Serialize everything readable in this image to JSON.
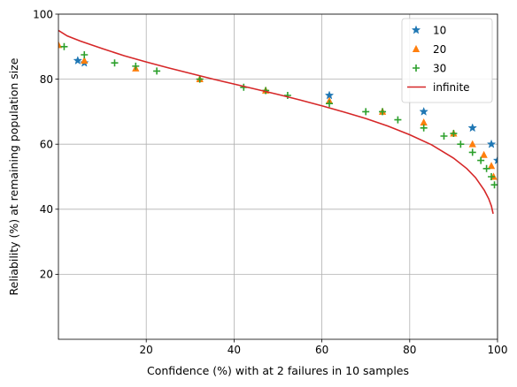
{
  "chart_data": {
    "type": "scatter",
    "xlabel": "Confidence (%) with at 2 failures in 10 samples",
    "ylabel": "Reliability (%) at remaining population size",
    "xlim": [
      0,
      100
    ],
    "ylim": [
      0,
      100
    ],
    "x_ticks": [
      "20",
      "40",
      "60",
      "80",
      "100"
    ],
    "y_ticks": [
      "20",
      "40",
      "60",
      "80",
      "100"
    ],
    "grid": true,
    "legend_position": "top-right",
    "series": [
      {
        "name": "10",
        "marker": "star",
        "color": "#1f77b4",
        "points": [
          [
            4.4,
            85.7
          ],
          [
            5.9,
            85.0
          ],
          [
            61.7,
            75.0
          ],
          [
            83.2,
            70.0
          ],
          [
            94.3,
            65.0
          ],
          [
            98.6,
            60.0
          ],
          [
            100.0,
            55.0
          ]
        ]
      },
      {
        "name": "20",
        "marker": "triangle",
        "color": "#ff7f0e",
        "points": [
          [
            0.0,
            90.5
          ],
          [
            5.9,
            85.7
          ],
          [
            17.6,
            83.3
          ],
          [
            32.2,
            80.0
          ],
          [
            47.2,
            76.5
          ],
          [
            61.7,
            73.3
          ],
          [
            73.8,
            70.0
          ],
          [
            83.2,
            66.7
          ],
          [
            90.0,
            63.3
          ],
          [
            94.3,
            60.0
          ],
          [
            96.9,
            56.7
          ],
          [
            98.6,
            53.3
          ],
          [
            99.1,
            50.0
          ]
        ]
      },
      {
        "name": "30",
        "marker": "plus",
        "color": "#2ca02c",
        "points": [
          [
            1.3,
            90.0
          ],
          [
            5.9,
            87.5
          ],
          [
            12.8,
            85.0
          ],
          [
            17.6,
            84.0
          ],
          [
            22.4,
            82.5
          ],
          [
            32.2,
            80.0
          ],
          [
            42.2,
            77.5
          ],
          [
            47.2,
            76.5
          ],
          [
            52.2,
            75.0
          ],
          [
            61.7,
            72.5
          ],
          [
            70.0,
            70.0
          ],
          [
            73.8,
            70.0
          ],
          [
            77.3,
            67.5
          ],
          [
            83.2,
            65.0
          ],
          [
            87.8,
            62.5
          ],
          [
            90.0,
            63.3
          ],
          [
            91.6,
            60.0
          ],
          [
            94.3,
            57.5
          ],
          [
            96.2,
            55.0
          ],
          [
            97.5,
            52.5
          ],
          [
            98.6,
            50.0
          ],
          [
            99.3,
            47.5
          ]
        ]
      },
      {
        "name": "infinite",
        "marker": "line",
        "color": "#d62728",
        "points": [
          [
            0.0,
            95.0
          ],
          [
            2.0,
            93.3
          ],
          [
            5.0,
            91.7
          ],
          [
            10.0,
            89.4
          ],
          [
            15.0,
            87.2
          ],
          [
            20.0,
            85.3
          ],
          [
            25.0,
            83.5
          ],
          [
            30.0,
            81.8
          ],
          [
            35.0,
            80.1
          ],
          [
            40.0,
            78.5
          ],
          [
            45.0,
            76.9
          ],
          [
            50.0,
            75.3
          ],
          [
            55.0,
            73.6
          ],
          [
            60.0,
            71.8
          ],
          [
            65.0,
            69.9
          ],
          [
            70.0,
            67.9
          ],
          [
            75.0,
            65.6
          ],
          [
            80.0,
            62.9
          ],
          [
            85.0,
            59.8
          ],
          [
            90.0,
            55.7
          ],
          [
            93.0,
            52.5
          ],
          [
            95.0,
            49.7
          ],
          [
            97.0,
            45.8
          ],
          [
            98.0,
            43.2
          ],
          [
            98.6,
            41.0
          ],
          [
            99.0,
            38.6
          ]
        ]
      }
    ]
  }
}
